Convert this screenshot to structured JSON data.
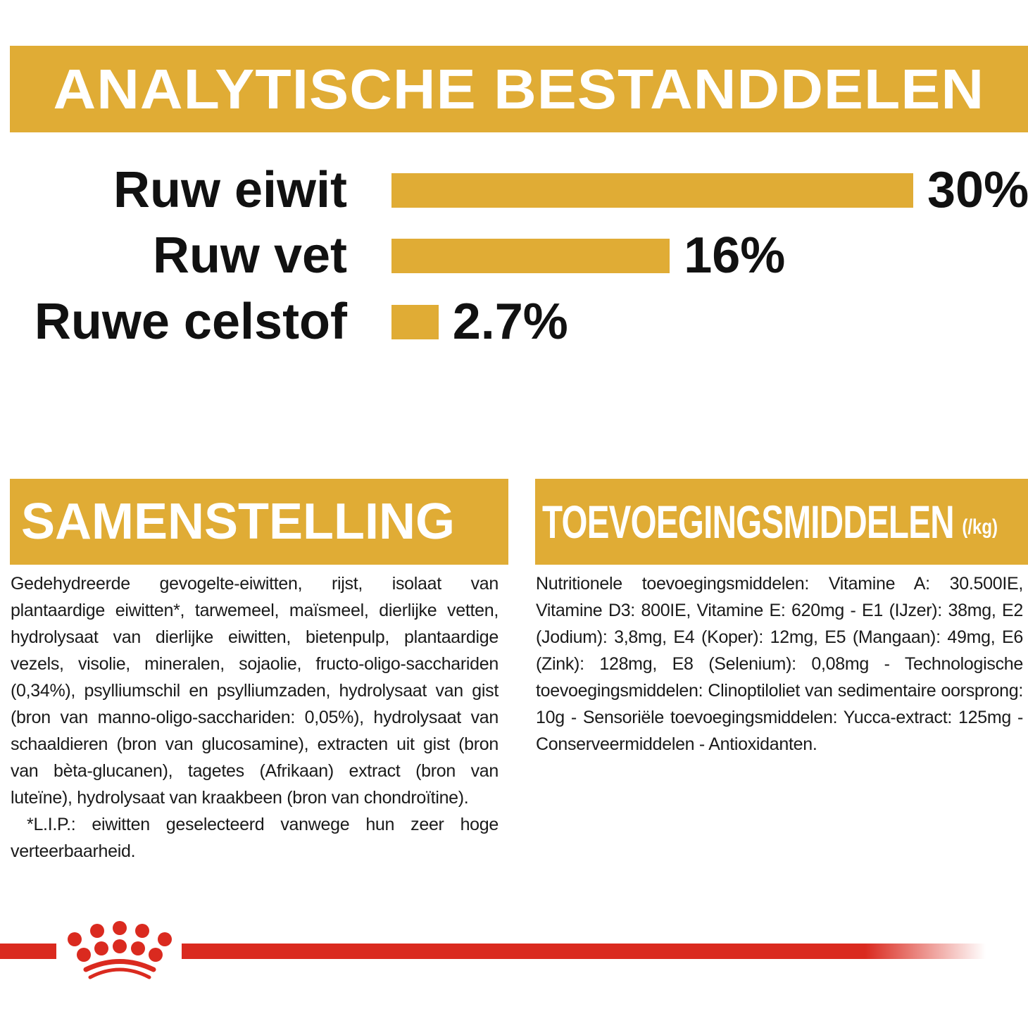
{
  "header": {
    "title": "ANALYTISCHE BESTANDDELEN"
  },
  "chart_data": {
    "type": "bar",
    "orientation": "horizontal",
    "categories": [
      "Ruw eiwit",
      "Ruw vet",
      "Ruwe celstof"
    ],
    "values": [
      30,
      16,
      2.7
    ],
    "value_labels": [
      "30%",
      "16%",
      "2.7%"
    ],
    "unit": "%",
    "grid": false,
    "bar_color": "#E0AC35"
  },
  "composition": {
    "title": "SAMENSTELLING",
    "text": "Gedehydreerde gevogelte-eiwitten, rijst, isolaat van plantaardige eiwitten*, tarwemeel, maïsmeel, dierlijke vetten, hydrolysaat van dierlijke eiwitten, bietenpulp, plantaardige vezels, visolie, mineralen, sojaolie, fructo-oligo-sacchariden (0,34%), psylliumschil en psylliumzaden, hydrolysaat van gist (bron van manno-oligo-sacchariden: 0,05%), hydrolysaat van schaaldieren (bron van glucosamine), extracten uit gist (bron van bèta-glucanen), tagetes (Afrikaan) extract (bron van luteïne), hydrolysaat van kraakbeen (bron van chondroïtine).",
    "footnote": "*L.I.P.: eiwitten geselecteerd vanwege hun zeer hoge verteerbaarheid."
  },
  "additives": {
    "title": "TOEVOEGINGSMIDDELEN",
    "unit": "(/kg)",
    "text": "Nutritionele toevoegingsmiddelen: Vitamine A: 30.500IE, Vitamine D3: 800IE, Vitamine E: 620mg - E1 (IJzer): 38mg, E2 (Jodium): 3,8mg, E4 (Koper): 12mg, E5 (Mangaan): 49mg, E6 (Zink): 128mg, E8 (Selenium): 0,08mg - Technologische toevoegingsmiddelen: Clinoptiloliet van sedimentaire oorsprong: 10g - Sensoriële toevoegingsmiddelen: Yucca-extract: 125mg - Conserveermiddelen - Antioxidanten."
  },
  "brand": {
    "logo": "royal-canin-crown",
    "color": "#DA2A1F"
  },
  "colors": {
    "accent": "#E0AC35",
    "brand_red": "#DA2A1F"
  }
}
